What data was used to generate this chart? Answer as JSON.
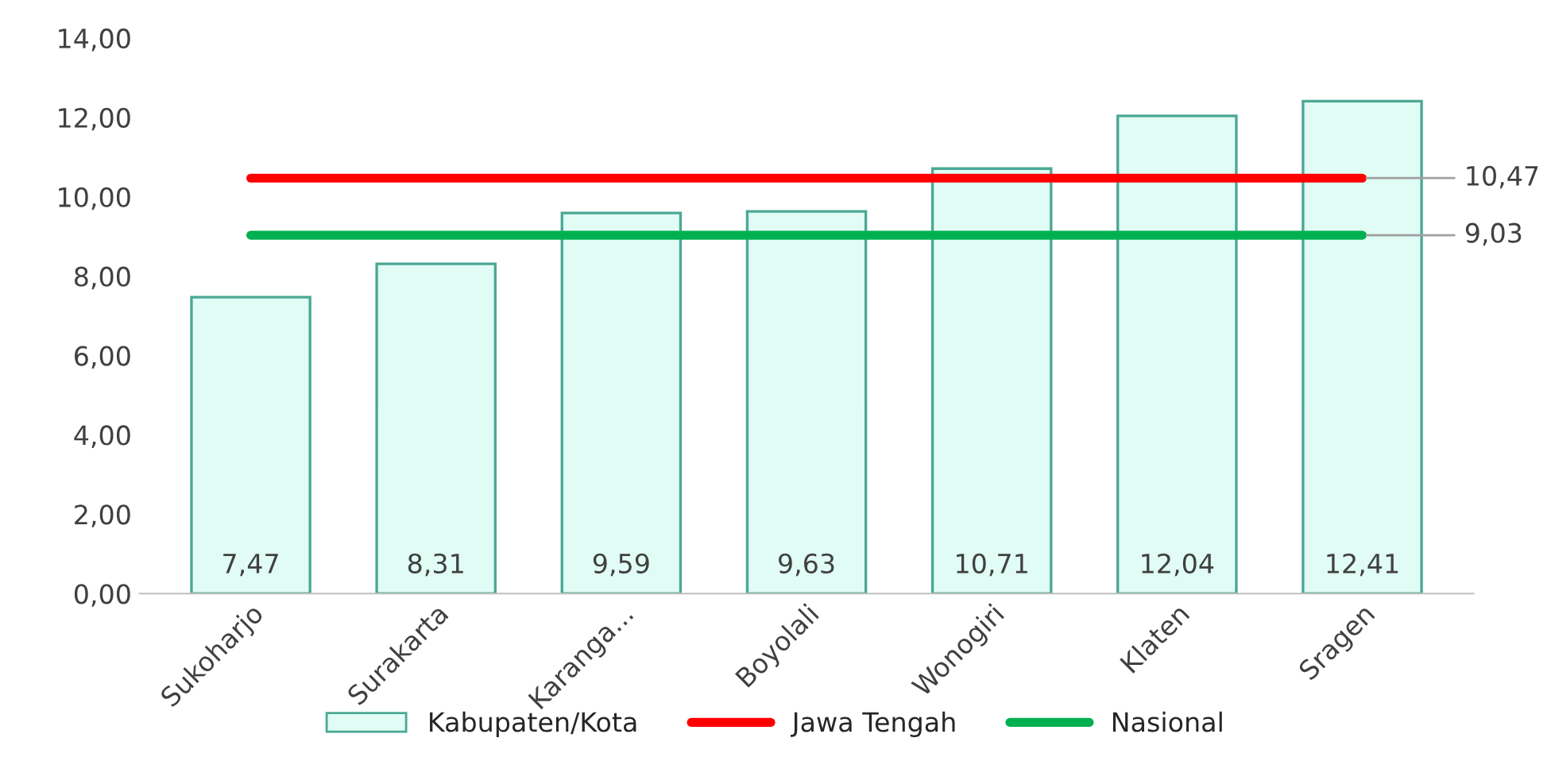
{
  "chart_data": {
    "type": "bar",
    "categories": [
      "Sukoharjo",
      "Surakarta",
      "Karanga...",
      "Boyolali",
      "Wonogiri",
      "Klaten",
      "Sragen"
    ],
    "series": [
      {
        "name": "Kabupaten/Kota",
        "color": "#e0fcf4",
        "values": [
          7.47,
          8.31,
          9.59,
          9.63,
          10.71,
          12.04,
          12.41
        ],
        "value_labels": [
          "7,47",
          "8,31",
          "9,59",
          "9,63",
          "10,71",
          "12,04",
          "12,41"
        ]
      },
      {
        "name": "Jawa Tengah",
        "type": "line",
        "color": "#ff0000",
        "values": [
          10.47,
          10.47,
          10.47,
          10.47,
          10.47,
          10.47,
          10.47
        ],
        "value_labels": [
          null,
          null,
          null,
          null,
          null,
          null,
          "10,47"
        ]
      },
      {
        "name": "Nasional",
        "type": "line",
        "color": "#00b050",
        "values": [
          9.03,
          9.03,
          9.03,
          9.03,
          9.03,
          9.03,
          9.03
        ],
        "value_labels": [
          null,
          null,
          null,
          null,
          null,
          null,
          "9,03"
        ]
      }
    ],
    "ylim": [
      0,
      14
    ],
    "yticks": [
      {
        "value": 0,
        "label": "0,00"
      },
      {
        "value": 2,
        "label": "2,00"
      },
      {
        "value": 4,
        "label": "4,00"
      },
      {
        "value": 6,
        "label": "6,00"
      },
      {
        "value": 8,
        "label": "8,00"
      },
      {
        "value": 10,
        "label": "10,00"
      },
      {
        "value": 12,
        "label": "12,00"
      },
      {
        "value": 14,
        "label": "14,00"
      }
    ],
    "grid": false,
    "legend": "bottom",
    "marker": "none",
    "line_style": "solid"
  }
}
